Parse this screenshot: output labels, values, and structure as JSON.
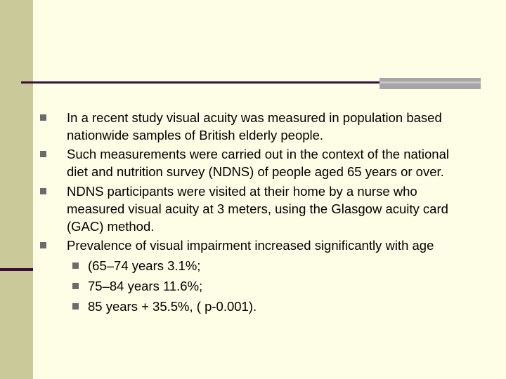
{
  "bullets": [
    {
      "level": 1,
      "lines": [
        "In a recent study visual acuity was measured in population based",
        "nationwide samples of British elderly people."
      ]
    },
    {
      "level": 1,
      "lines": [
        "Such measurements were carried out in the context of the national",
        "diet and nutrition survey (NDNS) of people aged 65 years or over."
      ]
    },
    {
      "level": 1,
      "lines": [
        "NDNS participants were visited at their home by a nurse who",
        "measured visual acuity at 3 meters, using the Glasgow acuity card",
        "(GAC) method."
      ]
    },
    {
      "level": 1,
      "lines": [
        "Prevalence of visual impairment increased significantly with age"
      ]
    },
    {
      "level": 2,
      "lines": [
        "(65–74 years 3.1%;"
      ]
    },
    {
      "level": 2,
      "lines": [
        "75–84 years 11.6%;"
      ]
    },
    {
      "level": 2,
      "lines": [
        "85 years +  35.5%, ( p-0.001)."
      ]
    }
  ],
  "colors": {
    "background": "#fefee6",
    "left_band": "#c9c99a",
    "rule": "#3a0f3a",
    "rule_gray": "#a6a6a6",
    "bullet_marker": "#6b6b6b"
  }
}
